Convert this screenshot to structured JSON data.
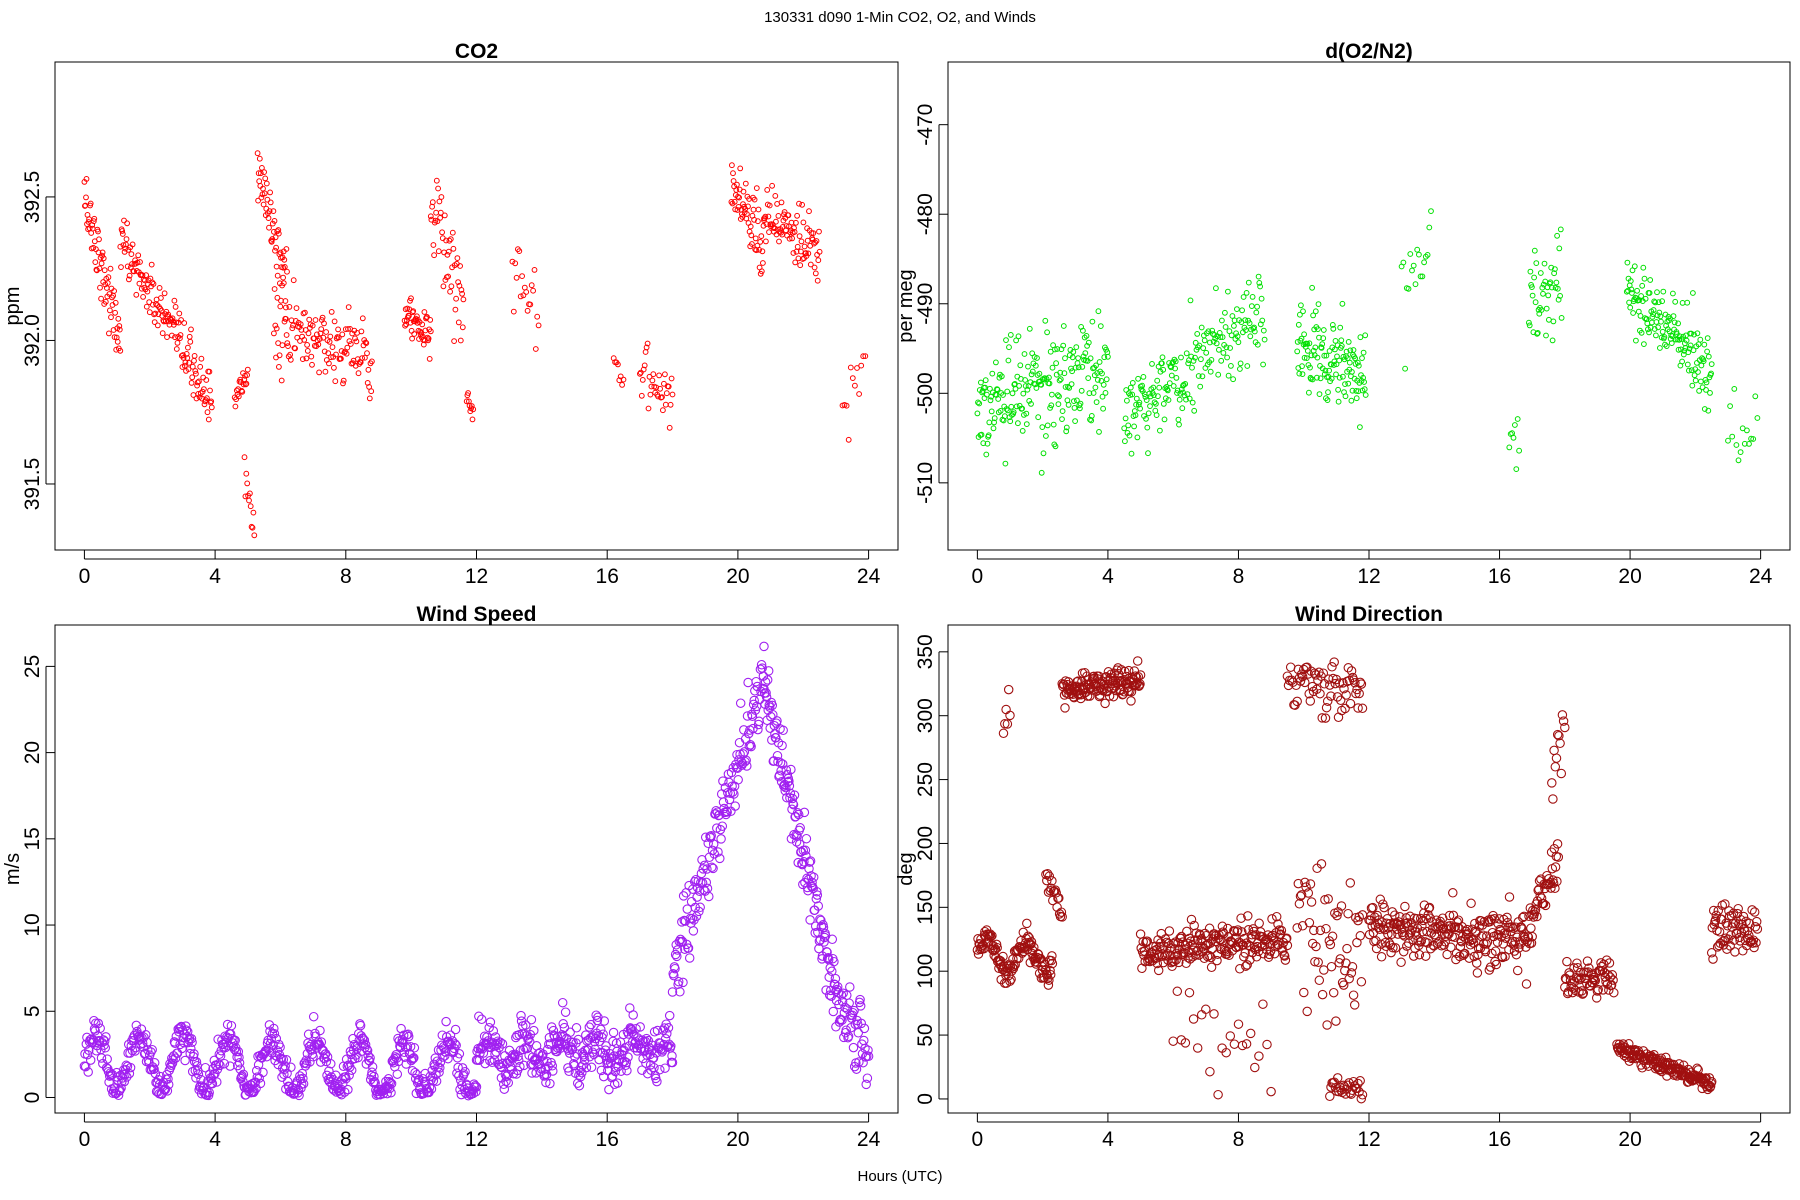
{
  "figure": {
    "suptitle": "130331    d090    1-Min CO2, O2, and Winds",
    "xlabel": "Hours (UTC)"
  },
  "chart_data": [
    {
      "type": "scatter",
      "id": "co2",
      "title": "CO2",
      "ylabel": "ppm",
      "xlim": [
        -0.9,
        24.9
      ],
      "ylim": [
        391.27,
        392.97
      ],
      "xticks": [
        0,
        4,
        8,
        12,
        16,
        20,
        24
      ],
      "yticks": [
        391.5,
        392.0,
        392.5
      ],
      "ytick_labels": [
        "391.5",
        "392.0",
        "392.5"
      ],
      "color": "#ff0000",
      "marker_size": "small",
      "series": [
        {
          "segments": [
            {
              "x0": 0.0,
              "x1": 1.1,
              "y0": 392.5,
              "y1": 392.0,
              "n": 70,
              "noise": 0.09
            },
            {
              "x0": 1.1,
              "x1": 3.9,
              "y0": 392.35,
              "y1": 391.78,
              "n": 150,
              "noise": 0.08
            },
            {
              "x0": 4.6,
              "x1": 5.0,
              "y0": 391.8,
              "y1": 391.87,
              "n": 20,
              "noise": 0.04
            },
            {
              "x0": 4.9,
              "x1": 5.2,
              "y0": 391.55,
              "y1": 391.33,
              "n": 12,
              "noise": 0.05
            },
            {
              "x0": 5.3,
              "x1": 6.2,
              "y0": 392.6,
              "y1": 392.2,
              "n": 55,
              "noise": 0.1
            },
            {
              "x0": 5.8,
              "x1": 8.8,
              "y0": 392.05,
              "y1": 391.95,
              "n": 140,
              "noise": 0.11
            },
            {
              "x0": 9.8,
              "x1": 10.6,
              "y0": 392.1,
              "y1": 392.0,
              "n": 50,
              "noise": 0.06
            },
            {
              "x0": 10.6,
              "x1": 11.6,
              "y0": 392.45,
              "y1": 392.15,
              "n": 50,
              "noise": 0.15
            },
            {
              "x0": 11.7,
              "x1": 11.9,
              "y0": 391.8,
              "y1": 391.75,
              "n": 10,
              "noise": 0.03
            },
            {
              "x0": 13.1,
              "x1": 13.9,
              "y0": 392.25,
              "y1": 392.1,
              "n": 20,
              "noise": 0.12
            },
            {
              "x0": 16.2,
              "x1": 16.5,
              "y0": 391.95,
              "y1": 391.85,
              "n": 8,
              "noise": 0.03
            },
            {
              "x0": 17.0,
              "x1": 18.0,
              "y0": 391.9,
              "y1": 391.8,
              "n": 35,
              "noise": 0.08
            },
            {
              "x0": 19.8,
              "x1": 20.8,
              "y0": 392.55,
              "y1": 392.35,
              "n": 60,
              "noise": 0.11
            },
            {
              "x0": 20.8,
              "x1": 22.5,
              "y0": 392.45,
              "y1": 392.28,
              "n": 90,
              "noise": 0.09
            },
            {
              "x0": 23.2,
              "x1": 23.9,
              "y0": 391.75,
              "y1": 391.9,
              "n": 12,
              "noise": 0.15
            }
          ]
        }
      ]
    },
    {
      "type": "scatter",
      "id": "o2",
      "title": "d(O2/N2)",
      "ylabel": "per meg",
      "xlim": [
        -0.9,
        24.9
      ],
      "ylim": [
        -517.5,
        -463.0
      ],
      "xticks": [
        0,
        4,
        8,
        12,
        16,
        20,
        24
      ],
      "yticks": [
        -510,
        -500,
        -490,
        -480,
        -470
      ],
      "ytick_labels": [
        "-510",
        "-500",
        "-490",
        "-480",
        "-470"
      ],
      "color": "#00e000",
      "marker_size": "small",
      "series": [
        {
          "segments": [
            {
              "x0": 0.0,
              "x1": 4.0,
              "y0": -502,
              "y1": -497,
              "n": 220,
              "noise": 5.0
            },
            {
              "x0": 4.5,
              "x1": 6.3,
              "y0": -502,
              "y1": -498,
              "n": 90,
              "noise": 4.0
            },
            {
              "x0": 6.3,
              "x1": 8.8,
              "y0": -498,
              "y1": -491,
              "n": 110,
              "noise": 4.0
            },
            {
              "x0": 9.8,
              "x1": 11.9,
              "y0": -494,
              "y1": -497,
              "n": 130,
              "noise": 4.5
            },
            {
              "x0": 13.0,
              "x1": 13.9,
              "y0": -490,
              "y1": -482,
              "n": 18,
              "noise": 5.0
            },
            {
              "x0": 16.3,
              "x1": 16.6,
              "y0": -505,
              "y1": -506,
              "n": 8,
              "noise": 2.5
            },
            {
              "x0": 16.9,
              "x1": 17.9,
              "y0": -490,
              "y1": -488,
              "n": 45,
              "noise": 4.5
            },
            {
              "x0": 19.9,
              "x1": 22.5,
              "y0": -488,
              "y1": -498,
              "n": 150,
              "noise": 3.5
            },
            {
              "x0": 23.0,
              "x1": 23.9,
              "y0": -507,
              "y1": -503,
              "n": 15,
              "noise": 4.0
            }
          ]
        }
      ]
    },
    {
      "type": "scatter",
      "id": "wspd",
      "title": "Wind Speed",
      "ylabel": "m/s",
      "xlim": [
        -0.9,
        24.9
      ],
      "ylim": [
        -0.9,
        27.4
      ],
      "xticks": [
        0,
        4,
        8,
        12,
        16,
        20,
        24
      ],
      "yticks": [
        0,
        5,
        10,
        15,
        20,
        25
      ],
      "ytick_labels": [
        "0",
        "5",
        "10",
        "15",
        "20",
        "25"
      ],
      "color": "#a020f0",
      "marker_size": "large",
      "series": [
        {
          "segments": [
            {
              "x0": 0.0,
              "x1": 12.0,
              "y0": 2.2,
              "y1": 1.5,
              "n": 620,
              "noise": 0.9,
              "wave": 1.6,
              "period": 1.35
            },
            {
              "x0": 12.0,
              "x1": 18.0,
              "y0": 2.5,
              "y1": 2.8,
              "n": 340,
              "noise": 1.3,
              "wave": 0.6,
              "period": 1.1
            },
            {
              "x0": 18.0,
              "x1": 20.8,
              "y0": 7.0,
              "y1": 24.5,
              "n": 150,
              "noise": 1.8
            },
            {
              "x0": 20.8,
              "x1": 23.0,
              "y0": 24.0,
              "y1": 6.0,
              "n": 140,
              "noise": 1.8
            },
            {
              "x0": 23.0,
              "x1": 24.0,
              "y0": 5.5,
              "y1": 3.0,
              "n": 55,
              "noise": 1.7
            }
          ]
        }
      ]
    },
    {
      "type": "scatter",
      "id": "wdir",
      "title": "Wind Direction",
      "ylabel": "deg",
      "xlim": [
        -0.9,
        24.9
      ],
      "ylim": [
        -11,
        371
      ],
      "xticks": [
        0,
        4,
        8,
        12,
        16,
        20,
        24
      ],
      "yticks": [
        0,
        50,
        100,
        150,
        200,
        250,
        300,
        350
      ],
      "ytick_labels": [
        "0",
        "50",
        "100",
        "150",
        "200",
        "250",
        "300",
        "350"
      ],
      "color": "#a01010",
      "marker_size": "large",
      "series": [
        {
          "segments": [
            {
              "x0": 0.0,
              "x1": 2.3,
              "y0": 115,
              "y1": 110,
              "n": 130,
              "noise": 9,
              "wave": 12,
              "period": 1.2
            },
            {
              "x0": 0.8,
              "x1": 1.0,
              "y0": 300,
              "y1": 320,
              "n": 6,
              "noise": 20
            },
            {
              "x0": 2.1,
              "x1": 2.6,
              "y0": 175,
              "y1": 145,
              "n": 20,
              "noise": 8
            },
            {
              "x0": 2.6,
              "x1": 5.0,
              "y0": 320,
              "y1": 330,
              "n": 140,
              "noise": 9
            },
            {
              "x0": 5.0,
              "x1": 9.5,
              "y0": 115,
              "y1": 125,
              "n": 220,
              "noise": 14
            },
            {
              "x0": 6.0,
              "x1": 9.0,
              "y0": 60,
              "y1": 40,
              "n": 25,
              "noise": 30
            },
            {
              "x0": 9.5,
              "x1": 11.8,
              "y0": 330,
              "y1": 315,
              "n": 70,
              "noise": 18
            },
            {
              "x0": 9.8,
              "x1": 11.8,
              "y0": 130,
              "y1": 120,
              "n": 60,
              "noise": 45
            },
            {
              "x0": 10.8,
              "x1": 11.8,
              "y0": 10,
              "y1": 5,
              "n": 30,
              "noise": 8
            },
            {
              "x0": 12.0,
              "x1": 17.0,
              "y0": 135,
              "y1": 125,
              "n": 260,
              "noise": 20
            },
            {
              "x0": 17.0,
              "x1": 17.8,
              "y0": 140,
              "y1": 190,
              "n": 40,
              "noise": 15
            },
            {
              "x0": 17.6,
              "x1": 18.0,
              "y0": 260,
              "y1": 300,
              "n": 12,
              "noise": 25
            },
            {
              "x0": 18.0,
              "x1": 19.5,
              "y0": 95,
              "y1": 95,
              "n": 70,
              "noise": 12
            },
            {
              "x0": 19.6,
              "x1": 22.5,
              "y0": 40,
              "y1": 12,
              "n": 170,
              "noise": 5
            },
            {
              "x0": 22.5,
              "x1": 23.9,
              "y0": 130,
              "y1": 130,
              "n": 70,
              "noise": 18
            }
          ]
        }
      ]
    }
  ]
}
